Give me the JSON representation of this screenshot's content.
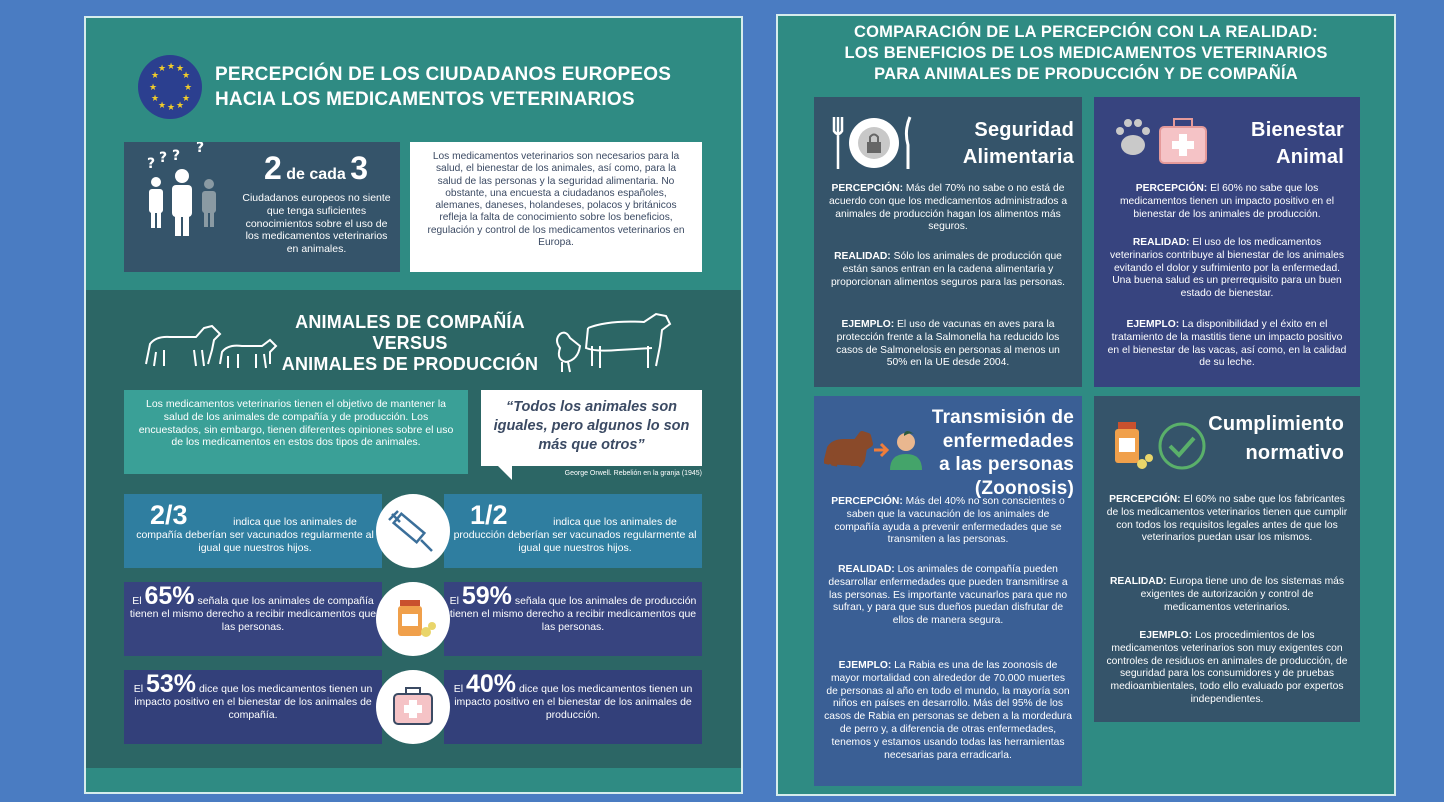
{
  "left": {
    "title_line1": "PERCEPCIÓN DE LOS CIUDADANOS EUROPEOS",
    "title_line2": "HACIA LOS MEDICAMENTOS VETERINARIOS",
    "stat_big": "2",
    "stat_mid": "de cada",
    "stat_big2": "3",
    "stat_caption": "Ciudadanos europeos no siente que tenga suficientes conocimientos sobre el uso de los medicamentos veterinarios en animales.",
    "intro_text": "Los medicamentos veterinarios son necesarios para la salud, el bienestar de los animales, así como, para la salud de las personas y la seguridad alimentaria. No obstante, una encuesta a ciudadanos españoles, alemanes, daneses, holandeses, polacos y británicos refleja la falta de conocimiento sobre los beneficios, regulación y control de los medicamentos veterinarios en Europa.",
    "versus_line1": "ANIMALES DE COMPAÑÍA",
    "versus_line2": "VERSUS",
    "versus_line3": "ANIMALES DE PRODUCCIÓN",
    "versus_text": "Los medicamentos veterinarios tienen el objetivo de mantener la salud de los animales de compañía y de producción. Los encuestados, sin embargo, tienen diferentes opiniones sobre el uso de los medicamentos en estos dos tipos de animales.",
    "quote": "“Todos los animales son iguales, pero algunos lo son más que otros”",
    "quote_author": "George Orwell. Rebelión en la granja (1945)",
    "stats": [
      {
        "prefix": "",
        "value": "2/3",
        "text": "indica que los animales de compañía deberían ser vacunados regularmente al igual que nuestros hijos."
      },
      {
        "prefix": "",
        "value": "1/2",
        "text": "indica que los animales de producción deberían ser vacunados regularmente al igual que nuestros hijos."
      },
      {
        "prefix": "El",
        "value": "65%",
        "text": "señala que los animales de compañía tienen el mismo derecho a recibir medicamentos que las personas."
      },
      {
        "prefix": "El",
        "value": "59%",
        "text": "señala que los animales de producción tienen el mismo derecho a recibir medicamentos que las personas."
      },
      {
        "prefix": "El",
        "value": "53%",
        "text": "dice que los medicamentos tienen un impacto positivo en el bienestar de los animales de compañía."
      },
      {
        "prefix": "El",
        "value": "40%",
        "text": "dice que los medicamentos tienen un impacto positivo en el bienestar de los animales de producción."
      }
    ],
    "icons": [
      "eu-flag-icon",
      "people-question-icon",
      "dog-icon",
      "cow-icon",
      "chicken-icon",
      "syringe-icon",
      "pills-icon",
      "first-aid-kit-icon"
    ]
  },
  "right": {
    "title_line1": "COMPARACIÓN DE LA PERCEPCIÓN CON LA REALIDAD:",
    "title_line2": "LOS BENEFICIOS DE LOS MEDICAMENTOS VETERINARIOS",
    "title_line3": "PARA ANIMALES DE PRODUCCIÓN Y DE COMPAÑÍA",
    "cards": [
      {
        "title": [
          "Seguridad",
          "Alimentaria"
        ],
        "percepcion_label": "PERCEPCIÓN:",
        "percepcion": "Más del 70% no sabe o no está de acuerdo con que los medicamentos administrados a animales de producción hagan los alimentos más seguros.",
        "realidad_label": "REALIDAD:",
        "realidad": "Sólo los animales de producción que están sanos entran en la cadena alimentaria y proporcionan alimentos seguros para las personas.",
        "ejemplo_label": "EJEMPLO:",
        "ejemplo": "El uso de vacunas en aves para la protección frente a la Salmonella ha reducido los casos de Salmonelosis en personas al menos un 50% en la UE desde 2004."
      },
      {
        "title": [
          "Bienestar",
          "Animal"
        ],
        "percepcion_label": "PERCEPCIÓN:",
        "percepcion": "El 60% no sabe que los medicamentos tienen un impacto positivo en el bienestar de los animales de producción.",
        "realidad_label": "REALIDAD:",
        "realidad": "El uso de los medicamentos veterinarios contribuye al bienestar de los animales evitando el dolor y sufrimiento por la enfermedad. Una buena salud es un prerrequisito para un buen estado de bienestar.",
        "ejemplo_label": "EJEMPLO:",
        "ejemplo": "La disponibilidad y el éxito en el tratamiento de la mastitis tiene un impacto positivo en el bienestar de las vacas, así como, en la calidad de su leche."
      },
      {
        "title": [
          "Transmisión de",
          "enfermedades",
          "a las personas",
          "(Zoonosis)"
        ],
        "percepcion_label": "PERCEPCIÓN:",
        "percepcion": "Más del 40% no son conscientes o saben que la vacunación de los animales de compañía ayuda a prevenir enfermedades que se transmiten a las personas.",
        "realidad_label": "REALIDAD:",
        "realidad": "Los animales de compañía pueden desarrollar enfermedades que pueden transmitirse a las personas. Es importante vacunarlos para que no sufran, y para que sus dueños puedan disfrutar de ellos de manera segura.",
        "ejemplo_label": "EJEMPLO:",
        "ejemplo": "La Rabia es una de las zoonosis de mayor mortalidad con alrededor de 70.000 muertes de personas al año en todo el mundo, la mayoría son niños en países en desarrollo. Más del 95% de los casos de Rabia en personas se deben a la mordedura de perro y, a diferencia de otras enfermedades, tenemos y estamos usando todas las herramientas necesarias para erradicarla."
      },
      {
        "title": [
          "Cumplimiento",
          "normativo"
        ],
        "percepcion_label": "PERCEPCIÓN:",
        "percepcion": "El 60% no sabe que los fabricantes de los medicamentos veterinarios tienen que cumplir con todos los requisitos legales antes de que los veterinarios puedan usar los mismos.",
        "realidad_label": "REALIDAD:",
        "realidad": "Europa tiene uno de los sistemas más exigentes de autorización y control de medicamentos veterinarios.",
        "ejemplo_label": "EJEMPLO:",
        "ejemplo": "Los procedimientos de los medicamentos veterinarios son muy  exigentes con controles de residuos en animales de producción, de seguridad para los consumidores y de pruebas medioambientales, todo ello evaluado por expertos independientes."
      }
    ],
    "icons": [
      "fork-plate-knife-lock-icon",
      "paw-first-aid-icon",
      "dog-to-person-icon",
      "pills-check-icon"
    ]
  },
  "colors": {
    "page_bg": "#4a7cc2",
    "teal": "#2f8b83",
    "dark_teal": "#2c6665",
    "slate": "#35546a",
    "indigo": "#37447f",
    "card_blue": "#3a5f95",
    "white": "#ffffff"
  }
}
